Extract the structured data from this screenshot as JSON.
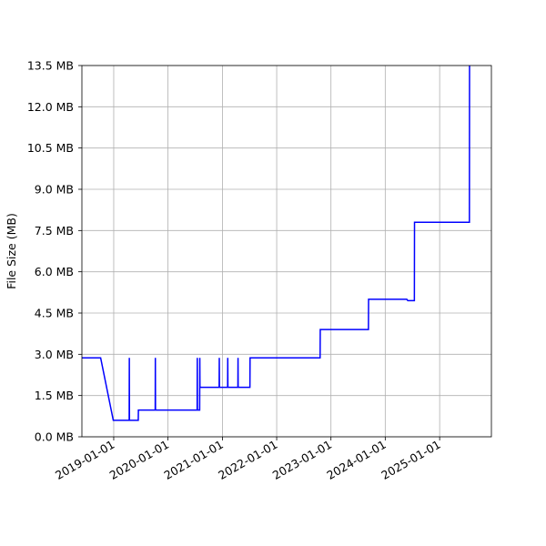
{
  "chart_data": {
    "type": "line",
    "title": "",
    "xlabel": "",
    "ylabel": "File Size (MB)",
    "ylim": [
      0,
      13.5
    ],
    "xlim": [
      "2018-06-01",
      "2025-12-15"
    ],
    "grid": true,
    "y_ticks": [
      0.0,
      1.5,
      3.0,
      4.5,
      6.0,
      7.5,
      9.0,
      10.5,
      12.0,
      13.5
    ],
    "y_tick_labels": [
      "0.0 MB",
      "1.5 MB",
      "3.0 MB",
      "4.5 MB",
      "6.0 MB",
      "7.5 MB",
      "9.0 MB",
      "10.5 MB",
      "12.0 MB",
      "13.5 MB"
    ],
    "x_ticks": [
      "2019-01-01",
      "2020-01-01",
      "2021-01-01",
      "2022-01-01",
      "2023-01-01",
      "2024-01-01",
      "2025-01-01"
    ],
    "x_tick_labels": [
      "2019-01-01",
      "2020-01-01",
      "2021-01-01",
      "2022-01-01",
      "2023-01-01",
      "2024-01-01",
      "2025-01-01"
    ],
    "series": [
      {
        "color": "#0000ff",
        "points": [
          [
            "2018-06-01",
            2.87
          ],
          [
            "2018-10-05",
            2.87
          ],
          [
            "2018-12-29",
            0.6
          ],
          [
            "2019-04-15",
            0.6
          ],
          [
            "2019-04-16",
            2.87
          ],
          [
            "2019-04-17",
            0.6
          ],
          [
            "2019-06-15",
            0.6
          ],
          [
            "2019-06-16",
            0.97
          ],
          [
            "2019-10-07",
            0.97
          ],
          [
            "2019-10-08",
            2.87
          ],
          [
            "2019-10-09",
            0.97
          ],
          [
            "2020-07-15",
            0.97
          ],
          [
            "2020-07-16",
            2.87
          ],
          [
            "2020-07-17",
            0.97
          ],
          [
            "2020-08-01",
            0.97
          ],
          [
            "2020-08-02",
            2.87
          ],
          [
            "2020-08-03",
            1.8
          ],
          [
            "2020-12-10",
            1.8
          ],
          [
            "2020-12-11",
            2.87
          ],
          [
            "2020-12-12",
            1.8
          ],
          [
            "2021-02-05",
            1.8
          ],
          [
            "2021-02-06",
            2.87
          ],
          [
            "2021-02-07",
            1.8
          ],
          [
            "2021-04-15",
            1.8
          ],
          [
            "2021-04-16",
            2.87
          ],
          [
            "2021-04-17",
            1.8
          ],
          [
            "2021-07-05",
            1.8
          ],
          [
            "2021-07-06",
            2.87
          ],
          [
            "2022-10-20",
            2.87
          ],
          [
            "2022-10-21",
            3.9
          ],
          [
            "2023-09-10",
            3.9
          ],
          [
            "2023-09-11",
            5.0
          ],
          [
            "2024-05-25",
            5.0
          ],
          [
            "2024-06-01",
            4.95
          ],
          [
            "2024-07-15",
            4.95
          ],
          [
            "2024-07-16",
            7.8
          ],
          [
            "2025-07-20",
            7.8
          ],
          [
            "2025-07-21",
            13.5
          ]
        ]
      }
    ]
  }
}
